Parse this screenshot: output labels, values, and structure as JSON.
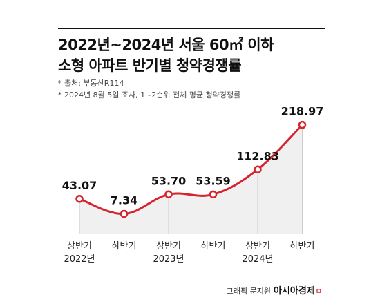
{
  "title": {
    "line1": "2022년~2024년 서울 60㎡ 이하",
    "line2": "소형 아파트 반기별 청약경쟁률"
  },
  "notes": [
    "* 출처: 부동산R114",
    "* 2024년 8월 5일 조사, 1~2순위 전체 평균 청약경쟁률"
  ],
  "chart_data": {
    "type": "line",
    "title": "2022년~2024년 서울 60㎡ 이하 소형 아파트 반기별 청약경쟁률",
    "categories": [
      [
        "상반기",
        "2022년"
      ],
      [
        "하반기"
      ],
      [
        "상반기",
        "2023년"
      ],
      [
        "하반기"
      ],
      [
        "상반기",
        "2024년"
      ],
      [
        "하반기"
      ]
    ],
    "values": [
      43.07,
      7.34,
      53.7,
      53.59,
      112.83,
      218.97
    ],
    "value_labels": [
      "43.07",
      "7.34",
      "53.70",
      "53.59",
      "112.83",
      "218.97"
    ],
    "ylim": [
      0,
      240
    ],
    "grid": false,
    "legend": "none",
    "line_color": "#d6232e",
    "fill_color": "#f0f0f0",
    "drop_line_color": "#cccccc"
  },
  "credit": {
    "text": "그래픽 문지원",
    "brand": "아시아경제",
    "mark": "ㅁ"
  }
}
